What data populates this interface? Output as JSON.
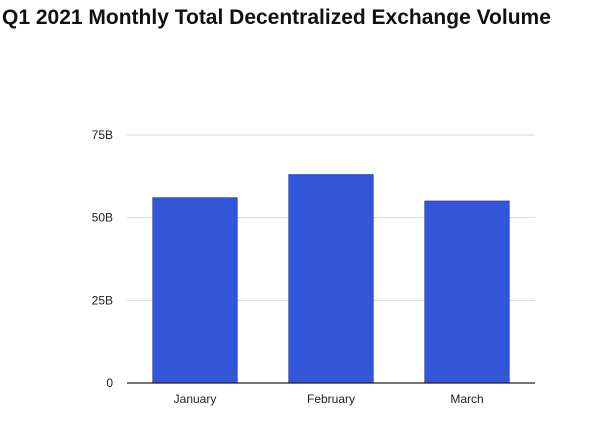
{
  "chart_data": {
    "type": "bar",
    "title": "Q1 2021 Monthly Total Decentralized Exchange Volume",
    "categories": [
      "January",
      "February",
      "March"
    ],
    "values": [
      56,
      63,
      55
    ],
    "units": "B",
    "ylim": [
      0,
      75
    ],
    "yticks": [
      {
        "value": 0,
        "label": "0"
      },
      {
        "value": 25,
        "label": "25B"
      },
      {
        "value": 50,
        "label": "50B"
      },
      {
        "value": 75,
        "label": "75B"
      }
    ],
    "grid": true,
    "legend": "none",
    "bar_color": "#3257d8",
    "bar_edge_color": "#2a4ab8",
    "gridline_color": "#d9d9d9",
    "axis_color": "#222222"
  }
}
